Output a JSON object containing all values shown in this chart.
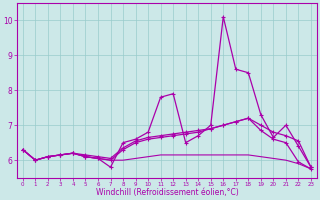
{
  "xlabel": "Windchill (Refroidissement éolien,°C)",
  "x": [
    0,
    1,
    2,
    3,
    4,
    5,
    6,
    7,
    8,
    9,
    10,
    11,
    12,
    13,
    14,
    15,
    16,
    17,
    18,
    19,
    20,
    21,
    22,
    23
  ],
  "y_main": [
    6.3,
    6.0,
    6.1,
    6.15,
    6.2,
    6.1,
    6.05,
    5.8,
    6.5,
    6.6,
    6.8,
    7.8,
    7.9,
    6.5,
    6.7,
    7.0,
    10.1,
    8.6,
    8.5,
    7.3,
    6.65,
    7.0,
    6.4,
    5.8
  ],
  "y_smooth": [
    6.3,
    6.0,
    6.1,
    6.15,
    6.2,
    6.1,
    6.05,
    6.0,
    6.3,
    6.5,
    6.6,
    6.65,
    6.7,
    6.75,
    6.8,
    6.9,
    7.0,
    7.1,
    7.2,
    7.0,
    6.8,
    6.7,
    6.55,
    5.8
  ],
  "y_upper": [
    6.3,
    6.0,
    6.1,
    6.15,
    6.2,
    6.15,
    6.1,
    6.05,
    6.35,
    6.55,
    6.65,
    6.7,
    6.75,
    6.8,
    6.85,
    6.9,
    7.0,
    7.1,
    7.2,
    6.85,
    6.6,
    6.5,
    5.95,
    5.75
  ],
  "y_flat": [
    6.3,
    6.0,
    6.1,
    6.15,
    6.2,
    6.1,
    6.05,
    6.0,
    6.0,
    6.05,
    6.1,
    6.15,
    6.15,
    6.15,
    6.15,
    6.15,
    6.15,
    6.15,
    6.15,
    6.1,
    6.05,
    6.0,
    5.9,
    5.75
  ],
  "ylim": [
    5.5,
    10.5
  ],
  "xlim": [
    -0.5,
    23.5
  ],
  "line_color": "#aa00aa",
  "bg_color": "#cce8e8",
  "grid_color": "#99cccc"
}
